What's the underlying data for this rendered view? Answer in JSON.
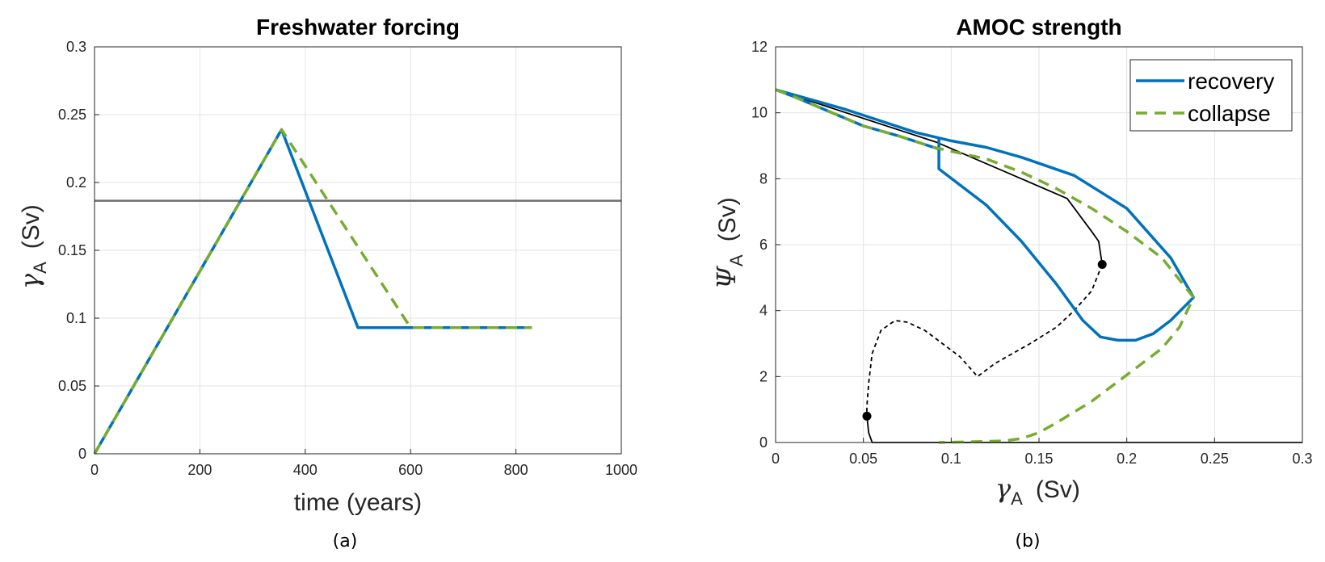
{
  "chart_data": [
    {
      "type": "line",
      "title": "Freshwater forcing",
      "xlabel": "time (years)",
      "ylabel_symbol": "γ",
      "ylabel_sub": "A",
      "ylabel_unit": "(Sv)",
      "xlim": [
        0,
        1000
      ],
      "ylim": [
        0,
        0.3
      ],
      "xticks": [
        "0",
        "200",
        "400",
        "600",
        "800",
        "1000"
      ],
      "yticks": [
        "0",
        "0.05",
        "0.1",
        "0.15",
        "0.2",
        "0.25",
        "0.3"
      ],
      "grid": true,
      "subcaption": "(a)",
      "series": [
        {
          "color": "#0072bd",
          "style": "solid",
          "x": [
            0,
            355,
            500,
            830
          ],
          "y": [
            0,
            0.239,
            0.093,
            0.093
          ]
        },
        {
          "color": "#77ac30",
          "style": "dashed",
          "x": [
            0,
            355,
            600,
            830
          ],
          "y": [
            0,
            0.239,
            0.093,
            0.093
          ]
        }
      ],
      "hlines": [
        {
          "y": 0.1865,
          "color": "#6e6e6e"
        }
      ]
    },
    {
      "type": "line",
      "title": "AMOC strength",
      "xlabel_symbol": "γ",
      "xlabel_sub": "A",
      "xlabel_unit": "(Sv)",
      "ylabel_symbol": "Ψ",
      "ylabel_sub": "A",
      "ylabel_unit": "(Sv)",
      "xlim": [
        0,
        0.3
      ],
      "ylim": [
        0,
        12
      ],
      "xticks": [
        "0",
        "0.05",
        "0.1",
        "0.15",
        "0.2",
        "0.25",
        "0.3"
      ],
      "yticks": [
        "0",
        "2",
        "4",
        "6",
        "8",
        "10",
        "12"
      ],
      "grid": true,
      "legend_position": "top-right",
      "subcaption": "(b)",
      "series": [
        {
          "name": "recovery",
          "color": "#0072bd",
          "style": "solid",
          "x": [
            0,
            0.01,
            0.03,
            0.05,
            0.07,
            0.09,
            0.093,
            0.093,
            0.093,
            0.12,
            0.14,
            0.16,
            0.175,
            0.185,
            0.195,
            0.205,
            0.215,
            0.225,
            0.238,
            0.225,
            0.2,
            0.17,
            0.14,
            0.12,
            0.1,
            0.08,
            0.06,
            0.04,
            0.02,
            0.01,
            0
          ],
          "y": [
            10.7,
            10.5,
            10.05,
            9.6,
            9.3,
            8.95,
            8.9,
            9.2,
            8.3,
            7.2,
            6.1,
            4.8,
            3.7,
            3.2,
            3.1,
            3.1,
            3.3,
            3.7,
            4.4,
            5.6,
            7.1,
            8.1,
            8.65,
            8.95,
            9.15,
            9.4,
            9.75,
            10.1,
            10.4,
            10.55,
            10.7
          ]
        },
        {
          "name": "collapse",
          "color": "#77ac30",
          "style": "dashed",
          "x": [
            0,
            0.01,
            0.03,
            0.05,
            0.07,
            0.09,
            0.12,
            0.14,
            0.16,
            0.18,
            0.2,
            0.22,
            0.238,
            0.23,
            0.22,
            0.2,
            0.18,
            0.16,
            0.15,
            0.14,
            0.13,
            0.11,
            0.1,
            0.093
          ],
          "y": [
            10.7,
            10.5,
            10.05,
            9.6,
            9.3,
            8.95,
            8.6,
            8.2,
            7.7,
            7.1,
            6.4,
            5.6,
            4.4,
            3.5,
            2.85,
            2.05,
            1.25,
            0.6,
            0.3,
            0.12,
            0.05,
            0.02,
            0.01,
            0
          ]
        },
        {
          "color": "#000000",
          "style": "solid",
          "x": [
            0,
            0.092,
            0.166,
            0.18,
            0.184,
            0.186
          ],
          "y": [
            10.7,
            9.1,
            7.4,
            6.4,
            6.1,
            5.4
          ]
        },
        {
          "color": "#000000",
          "style": "dashed",
          "x": [
            0.186,
            0.18,
            0.17,
            0.16,
            0.145,
            0.125,
            0.115,
            0.105,
            0.095,
            0.085,
            0.075,
            0.068,
            0.06,
            0.055,
            0.053,
            0.052,
            0.052
          ],
          "y": [
            5.4,
            4.6,
            4.0,
            3.5,
            3.0,
            2.4,
            2.0,
            2.6,
            3.0,
            3.4,
            3.65,
            3.7,
            3.4,
            2.7,
            1.8,
            1.1,
            0.8
          ]
        },
        {
          "color": "#000000",
          "style": "solid",
          "x": [
            0.052,
            0.053,
            0.055,
            0.3
          ],
          "y": [
            0.8,
            0.3,
            0,
            0
          ]
        }
      ],
      "markers": [
        {
          "x": 0.186,
          "y": 5.4,
          "color": "#000000"
        },
        {
          "x": 0.052,
          "y": 0.8,
          "color": "#000000"
        }
      ]
    }
  ]
}
